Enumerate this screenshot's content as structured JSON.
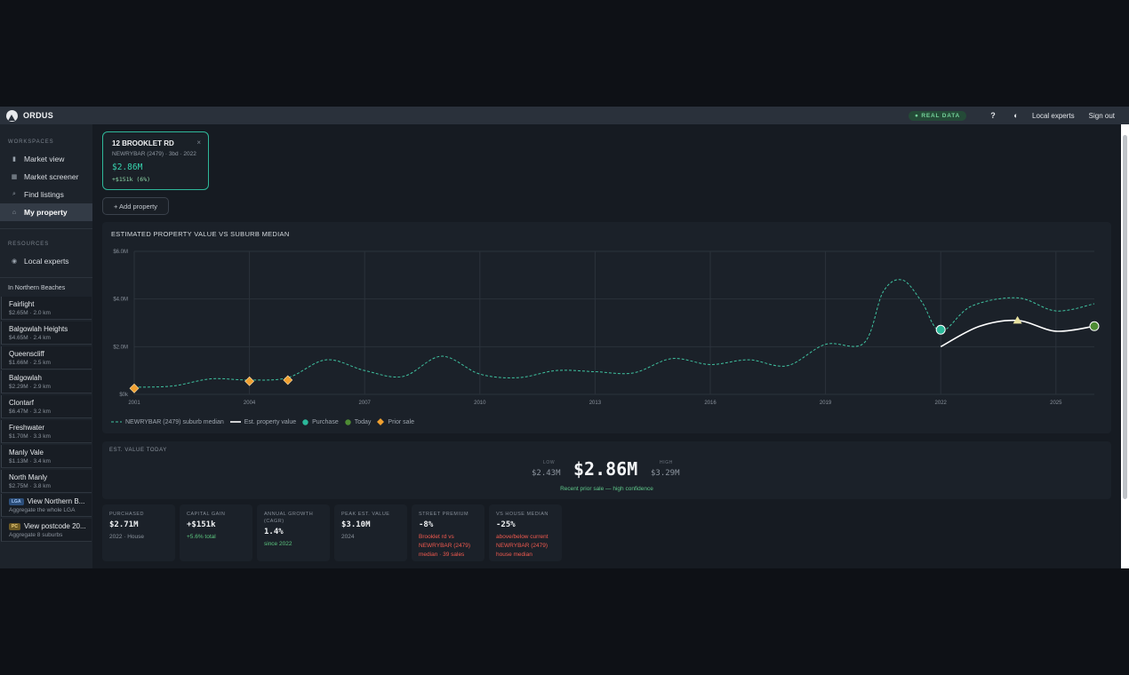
{
  "app": {
    "name": "ORDUS"
  },
  "topbar": {
    "real_data": "● REAL DATA",
    "help": "?",
    "theme": "◐",
    "local_experts": "Local experts",
    "sign_out": "Sign out"
  },
  "sidebar": {
    "workspaces_label": "WORKSPACES",
    "items": [
      {
        "label": "Market view",
        "icon": "bar-chart-icon"
      },
      {
        "label": "Market screener",
        "icon": "grid-icon"
      },
      {
        "label": "Find listings",
        "icon": "search-icon"
      },
      {
        "label": "My property",
        "icon": "home-icon"
      }
    ],
    "resources_label": "RESOURCES",
    "resources": [
      {
        "label": "Local experts",
        "icon": "person-icon"
      }
    ],
    "region_title": "In Northern Beaches",
    "suburbs": [
      {
        "name": "Fairlight",
        "meta": "$2.65M · 2.0 km"
      },
      {
        "name": "Balgowlah Heights",
        "meta": "$4.65M · 2.4 km"
      },
      {
        "name": "Queenscliff",
        "meta": "$1.66M · 2.5 km"
      },
      {
        "name": "Balgowlah",
        "meta": "$2.29M · 2.9 km"
      },
      {
        "name": "Clontarf",
        "meta": "$6.47M · 3.2 km"
      },
      {
        "name": "Freshwater",
        "meta": "$1.70M · 3.3 km"
      },
      {
        "name": "Manly Vale",
        "meta": "$1.13M · 3.4 km"
      },
      {
        "name": "North Manly",
        "meta": "$2.75M · 3.8 km"
      }
    ],
    "aggregates": [
      {
        "badge": "LGA",
        "name": "View Northern B...",
        "meta": "Aggregate the whole LGA"
      },
      {
        "badge": "PC",
        "name": "View postcode 20...",
        "meta": "Aggregate 8 suburbs"
      }
    ]
  },
  "property_card": {
    "address": "12 BROOKLET RD",
    "close": "×",
    "meta": "NEWRYBAR (2479) · 3bd · 2022",
    "value": "$2.86M",
    "change": "+$151k (6%)"
  },
  "add_property": "+ Add property",
  "chart_data": {
    "type": "line",
    "title": "ESTIMATED PROPERTY VALUE VS SUBURB MEDIAN",
    "y_ticks": [
      "$0k",
      "$2.0M",
      "$4.0M",
      "$6.0M"
    ],
    "x_ticks": [
      "2001",
      "2004",
      "2007",
      "2010",
      "2013",
      "2016",
      "2019",
      "2022",
      "2025"
    ],
    "xlim": [
      2001,
      2026
    ],
    "ylim": [
      0,
      6.0
    ],
    "series": [
      {
        "name": "NEWRYBAR (2479) suburb median",
        "style": "dashed",
        "color": "#3fc2a0",
        "x": [
          2001,
          2002,
          2003,
          2004,
          2005,
          2006,
          2007,
          2008,
          2009,
          2010,
          2011,
          2012,
          2013,
          2014,
          2015,
          2016,
          2017,
          2018,
          2019,
          2020,
          2020.5,
          2021,
          2021.5,
          2022,
          2022.8,
          2024,
          2025,
          2026
        ],
        "y": [
          0.3,
          0.35,
          0.65,
          0.6,
          0.7,
          1.45,
          1.0,
          0.75,
          1.6,
          0.85,
          0.7,
          1.0,
          0.95,
          0.9,
          1.5,
          1.25,
          1.45,
          1.2,
          2.1,
          2.15,
          4.3,
          4.8,
          3.9,
          2.65,
          3.7,
          4.05,
          3.5,
          3.8
        ]
      },
      {
        "name": "Est. property value",
        "style": "solid",
        "color": "#ffffff",
        "x": [
          2022,
          2023,
          2024,
          2025,
          2026
        ],
        "y": [
          2.0,
          2.85,
          3.1,
          2.65,
          2.86
        ]
      }
    ],
    "markers": [
      {
        "name": "Purchase",
        "x": 2022,
        "y": 2.71,
        "shape": "circle",
        "color": "#2bb89a"
      },
      {
        "name": "Today",
        "x": 2026,
        "y": 2.86,
        "shape": "circle",
        "color": "#4e8c34"
      },
      {
        "name": "Peak",
        "x": 2024,
        "y": 3.1,
        "shape": "triangle",
        "color": "#e8e2a0"
      },
      {
        "name": "Prior sale",
        "x": 2001,
        "y": 0.25,
        "shape": "diamond",
        "color": "#f0a030"
      },
      {
        "name": "Prior sale",
        "x": 2004,
        "y": 0.55,
        "shape": "diamond",
        "color": "#f0a030"
      },
      {
        "name": "Prior sale",
        "x": 2005,
        "y": 0.6,
        "shape": "diamond",
        "color": "#f0a030"
      }
    ],
    "legend": [
      {
        "label": "NEWRYBAR (2479) suburb median",
        "swatch": "dash",
        "color": "#3fc2a0"
      },
      {
        "label": "Est. property value",
        "swatch": "line",
        "color": "#ffffff"
      },
      {
        "label": "Purchase",
        "swatch": "dot",
        "color": "#2bb89a"
      },
      {
        "label": "Today",
        "swatch": "dot",
        "color": "#4e8c34"
      },
      {
        "label": "Prior sale",
        "swatch": "diamond",
        "color": "#f0a030"
      }
    ],
    "legend_placement": "bottom-left",
    "grid": true
  },
  "value_today": {
    "label": "EST. VALUE TODAY",
    "low_label": "LOW",
    "low": "$2.43M",
    "value": "$2.86M",
    "high_label": "HIGH",
    "high": "$3.29M",
    "confidence": "Recent prior sale — high confidence"
  },
  "stats": [
    {
      "label": "PURCHASED",
      "value": "$2.71M",
      "sub": "2022 · House",
      "tone": "muted"
    },
    {
      "label": "CAPITAL GAIN",
      "value": "+$151k",
      "sub": "+5.6% total",
      "tone": "green"
    },
    {
      "label": "ANNUAL GROWTH (CAGR)",
      "value": "1.4%",
      "sub": "since 2022",
      "tone": "green"
    },
    {
      "label": "PEAK EST. VALUE",
      "value": "$3.10M",
      "sub": "2024",
      "tone": "muted"
    },
    {
      "label": "STREET PREMIUM",
      "value": "-8%",
      "sub": "Brooklet rd vs NEWRYBAR (2479) median · 39 sales",
      "tone": "red"
    },
    {
      "label": "VS HOUSE MEDIAN",
      "value": "-25%",
      "sub": "above/below current NEWRYBAR (2479) house median",
      "tone": "red"
    }
  ]
}
